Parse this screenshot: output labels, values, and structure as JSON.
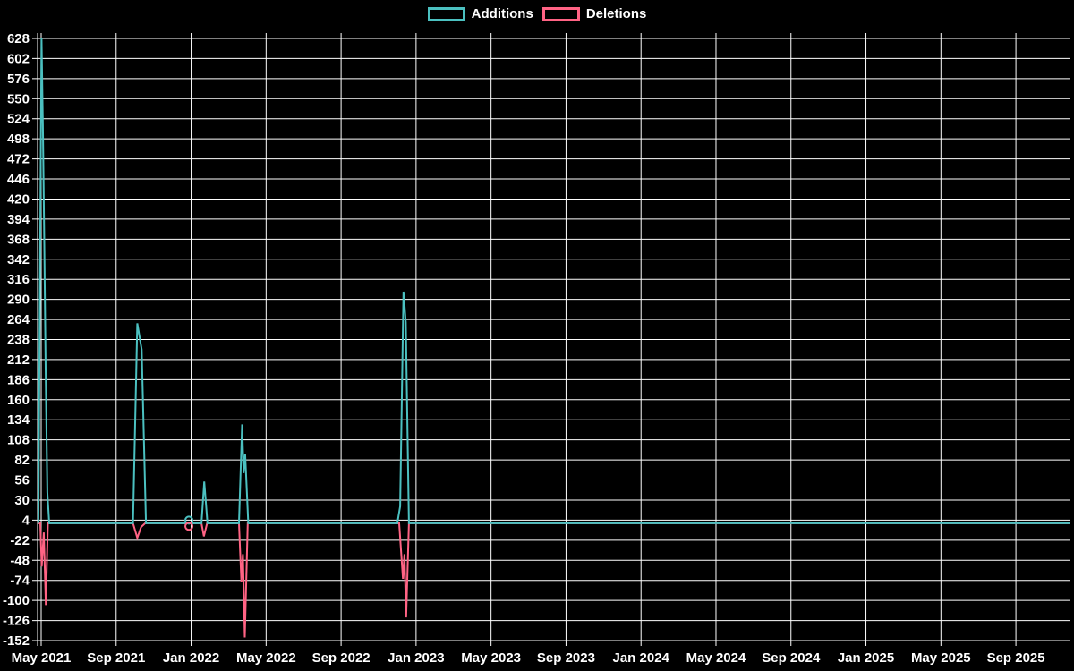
{
  "page": {
    "background": "#000000",
    "text_color": "#ffffff"
  },
  "legend": {
    "items": [
      {
        "label": "Additions",
        "color": "#4bc0c0"
      },
      {
        "label": "Deletions",
        "color": "#ff6384"
      }
    ]
  },
  "chart_data": {
    "type": "line",
    "title": "",
    "xlabel": "",
    "ylabel": "",
    "x_unit": "months offset from May 2021 (weekly commit activity)",
    "legend_position": "top",
    "grid": true,
    "grid_color": "#ffffff",
    "background": "#000000",
    "axis_text_color": "#ffffff",
    "ylim": [
      -152,
      628
    ],
    "y_tick_step": 26,
    "y_ticks": [
      628,
      602,
      576,
      550,
      524,
      498,
      472,
      446,
      420,
      394,
      368,
      342,
      316,
      290,
      264,
      238,
      212,
      186,
      160,
      134,
      108,
      82,
      56,
      30,
      4,
      -22,
      -48,
      -74,
      -100,
      -126,
      -152
    ],
    "x_ticks": [
      {
        "label": "May 2021",
        "m": 0
      },
      {
        "label": "Sep 2021",
        "m": 4
      },
      {
        "label": "Jan 2022",
        "m": 8
      },
      {
        "label": "May 2022",
        "m": 12
      },
      {
        "label": "Sep 2022",
        "m": 16
      },
      {
        "label": "Jan 2023",
        "m": 20
      },
      {
        "label": "May 2023",
        "m": 24
      },
      {
        "label": "Sep 2023",
        "m": 28
      },
      {
        "label": "Jan 2024",
        "m": 32
      },
      {
        "label": "May 2024",
        "m": 36
      },
      {
        "label": "Sep 2024",
        "m": 40
      },
      {
        "label": "Jan 2025",
        "m": 44
      },
      {
        "label": "May 2025",
        "m": 48
      },
      {
        "label": "Sep 2025",
        "m": 52
      }
    ],
    "xlim_months": [
      -0.15,
      54.9
    ],
    "series": [
      {
        "name": "Additions",
        "color": "#4bc0c0",
        "points_m_v": [
          [
            -0.15,
            0
          ],
          [
            0.02,
            628
          ],
          [
            0.09,
            515
          ],
          [
            0.17,
            350
          ],
          [
            0.24,
            200
          ],
          [
            0.33,
            40
          ],
          [
            0.43,
            0
          ],
          [
            4.9,
            0
          ],
          [
            5.13,
            259
          ],
          [
            5.36,
            225
          ],
          [
            5.59,
            0
          ],
          [
            8.55,
            0
          ],
          [
            8.7,
            54
          ],
          [
            8.87,
            0
          ],
          [
            10.55,
            0
          ],
          [
            10.72,
            128
          ],
          [
            10.8,
            65
          ],
          [
            10.88,
            90
          ],
          [
            11.05,
            0
          ],
          [
            19.0,
            0
          ],
          [
            19.15,
            22
          ],
          [
            19.33,
            300
          ],
          [
            19.45,
            260
          ],
          [
            19.62,
            0
          ],
          [
            54.9,
            0
          ]
        ]
      },
      {
        "name": "Deletions",
        "color": "#ff6384",
        "points_m_v": [
          [
            -0.15,
            0
          ],
          [
            -0.05,
            0
          ],
          [
            0.03,
            -56
          ],
          [
            0.14,
            -12
          ],
          [
            0.25,
            -106
          ],
          [
            0.36,
            0
          ],
          [
            4.9,
            0
          ],
          [
            5.13,
            -19
          ],
          [
            5.33,
            -5
          ],
          [
            5.55,
            0
          ],
          [
            8.55,
            0
          ],
          [
            8.68,
            -17
          ],
          [
            8.85,
            0
          ],
          [
            10.55,
            0
          ],
          [
            10.68,
            -76
          ],
          [
            10.76,
            -40
          ],
          [
            10.86,
            -148
          ],
          [
            11.02,
            0
          ],
          [
            19.1,
            0
          ],
          [
            19.3,
            -72
          ],
          [
            19.38,
            -40
          ],
          [
            19.47,
            -122
          ],
          [
            19.62,
            0
          ],
          [
            54.9,
            0
          ]
        ]
      }
    ],
    "isolated_markers": [
      {
        "m": 7.88,
        "style": "open-circle",
        "values": [
          {
            "name": "Additions",
            "value": 4
          },
          {
            "name": "Deletions",
            "value": -4
          }
        ]
      }
    ]
  }
}
